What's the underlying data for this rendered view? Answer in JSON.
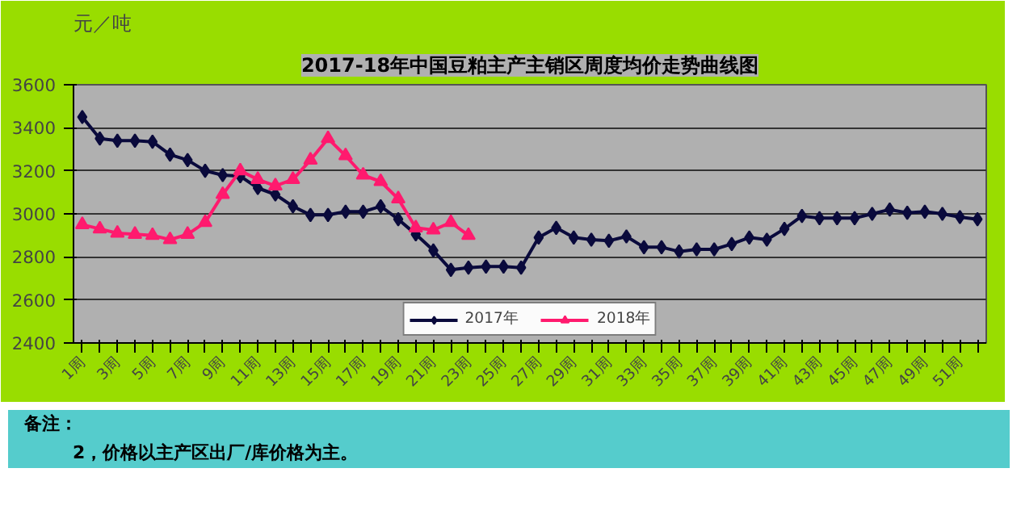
{
  "chart_data": {
    "type": "line",
    "title": "2017-18年中国豆粕主产主销区周度均价走势曲线图",
    "ylabel": "元／吨",
    "categories": [
      "1周",
      null,
      "3周",
      null,
      "5周",
      null,
      "7周",
      null,
      "9周",
      null,
      "11周",
      null,
      "13周",
      null,
      "15周",
      null,
      "17周",
      null,
      "19周",
      null,
      "21周",
      null,
      "23周",
      null,
      "25周",
      null,
      "27周",
      null,
      "29周",
      null,
      "31周",
      null,
      "33周",
      null,
      "35周",
      null,
      "37周",
      null,
      "39周",
      null,
      "41周",
      null,
      "43周",
      null,
      "45周",
      null,
      "47周",
      null,
      "49周",
      null,
      "51周",
      null
    ],
    "series": [
      {
        "name": "2017年",
        "color": "#0a0a3c",
        "marker": "diamond",
        "values": [
          3450,
          3350,
          3340,
          3340,
          3335,
          3275,
          3250,
          3200,
          3180,
          3175,
          3120,
          3090,
          3035,
          2995,
          2995,
          3010,
          3010,
          3035,
          2975,
          2905,
          2830,
          2740,
          2750,
          2755,
          2755,
          2750,
          2890,
          2935,
          2890,
          2880,
          2875,
          2895,
          2845,
          2845,
          2825,
          2835,
          2835,
          2860,
          2890,
          2880,
          2930,
          2990,
          2980,
          2980,
          2980,
          3000,
          3020,
          3005,
          3010,
          3000,
          2985,
          2975
        ]
      },
      {
        "name": "2018年",
        "color": "#ff1a6e",
        "marker": "triangle",
        "values": [
          2950,
          2930,
          2910,
          2905,
          2900,
          2880,
          2905,
          2960,
          3090,
          3200,
          3160,
          3130,
          3160,
          3250,
          3350,
          3270,
          3180,
          3150,
          3070,
          2935,
          2925,
          2960,
          2900,
          null,
          null,
          null,
          null,
          null,
          null,
          null,
          null,
          null,
          null,
          null,
          null,
          null,
          null,
          null,
          null,
          null,
          null,
          null,
          null,
          null,
          null,
          null,
          null,
          null,
          null,
          null,
          null,
          null
        ]
      }
    ],
    "ylim": [
      2400,
      3600
    ],
    "yticks": [
      2400,
      2600,
      2800,
      3000,
      3200,
      3400,
      3600
    ],
    "grid": "y",
    "legend": "bottom",
    "line_style": "solid",
    "annotations": [
      "备注：",
      "2，价格以主产区出厂/库价格为主。"
    ]
  }
}
